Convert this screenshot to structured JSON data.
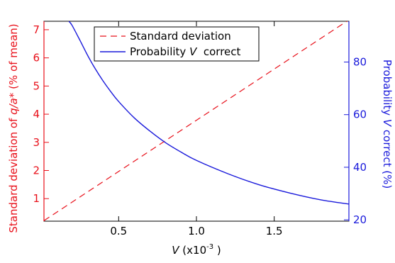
{
  "colors": {
    "left_axis": "#e8101a",
    "right_axis": "#1a1adb",
    "frame": "#000000"
  },
  "chart_data": {
    "type": "line",
    "x_label": {
      "prefix": "V",
      "unit_open": " (x10",
      "exponent": "-3",
      "unit_close": " )"
    },
    "y_left_label": {
      "prefix": "Standard deviation of ",
      "italic": "q/a*",
      "suffix": " (% of mean)"
    },
    "y_right_label": {
      "prefix": "Probability ",
      "italic": "V",
      "suffix": " correct (%)"
    },
    "xlim": [
      0.02,
      1.98
    ],
    "ylim_left": [
      0.2,
      7.3
    ],
    "ylim_right": [
      19.5,
      95.5
    ],
    "x_ticks": [
      0.5,
      1.0,
      1.5
    ],
    "x_tick_labels": [
      "0.5",
      "1.0",
      "1.5"
    ],
    "y_left_ticks": [
      1,
      2,
      3,
      4,
      5,
      6,
      7
    ],
    "y_left_tick_labels": [
      "1",
      "2",
      "3",
      "4",
      "5",
      "6",
      "7"
    ],
    "y_right_ticks": [
      20,
      40,
      60,
      80
    ],
    "y_right_tick_labels": [
      "20",
      "40",
      "60",
      "80"
    ],
    "legend": {
      "position": "top-center",
      "entries": [
        {
          "label": "Standard deviation",
          "style": "dashed",
          "color": "#e8101a"
        },
        {
          "label_prefix": "Probability ",
          "label_italic": "V",
          "label_suffix": "  correct",
          "style": "solid",
          "color": "#1a1adb"
        }
      ]
    },
    "series": [
      {
        "name": "Standard deviation",
        "axis": "left",
        "line_style": "dashed",
        "color": "#e8101a",
        "x": [
          0.02,
          1.98
        ],
        "y": [
          0.22,
          7.35
        ]
      },
      {
        "name": "Probability V correct",
        "axis": "right",
        "line_style": "solid",
        "color": "#1a1adb",
        "x": [
          0.18,
          0.2,
          0.25,
          0.3,
          0.35,
          0.4,
          0.45,
          0.5,
          0.6,
          0.7,
          0.8,
          0.9,
          1.0,
          1.2,
          1.4,
          1.6,
          1.8,
          1.98
        ],
        "y": [
          95.5,
          94.0,
          88.4,
          82.6,
          77.4,
          72.8,
          68.7,
          65.0,
          58.8,
          53.8,
          49.4,
          45.8,
          42.6,
          37.6,
          33.4,
          30.2,
          27.6,
          26.0
        ]
      }
    ]
  }
}
